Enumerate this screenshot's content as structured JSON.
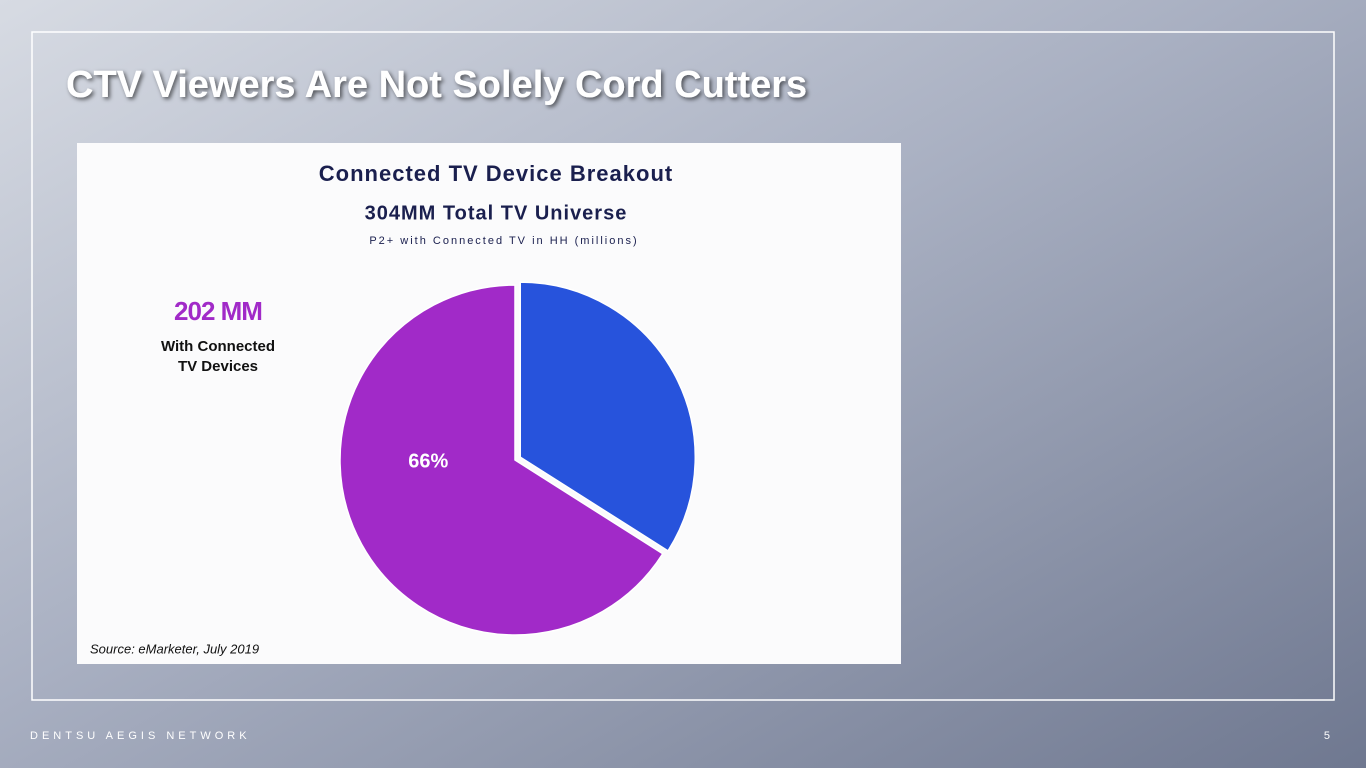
{
  "chart_data": {
    "type": "pie",
    "slide_title": "CTV Viewers Are Not Solely Cord Cutters",
    "title": "Connected TV Device Breakout",
    "subtitle": "304MM Total TV Universe",
    "caption": "P2+ with Connected TV in HH (millions)",
    "values": [
      34,
      66
    ],
    "value_labels": [
      null,
      "66%"
    ],
    "colors": [
      "#2753dc",
      "#a12ac8"
    ],
    "exploded": [
      true,
      false
    ],
    "annotation": {
      "headline": "202 MM",
      "lines": [
        "With Connected",
        "TV Devices"
      ]
    },
    "source": "Source: eMarketer, July 2019",
    "footer": "DENTSU AEGIS NETWORK",
    "page_number": "5"
  }
}
